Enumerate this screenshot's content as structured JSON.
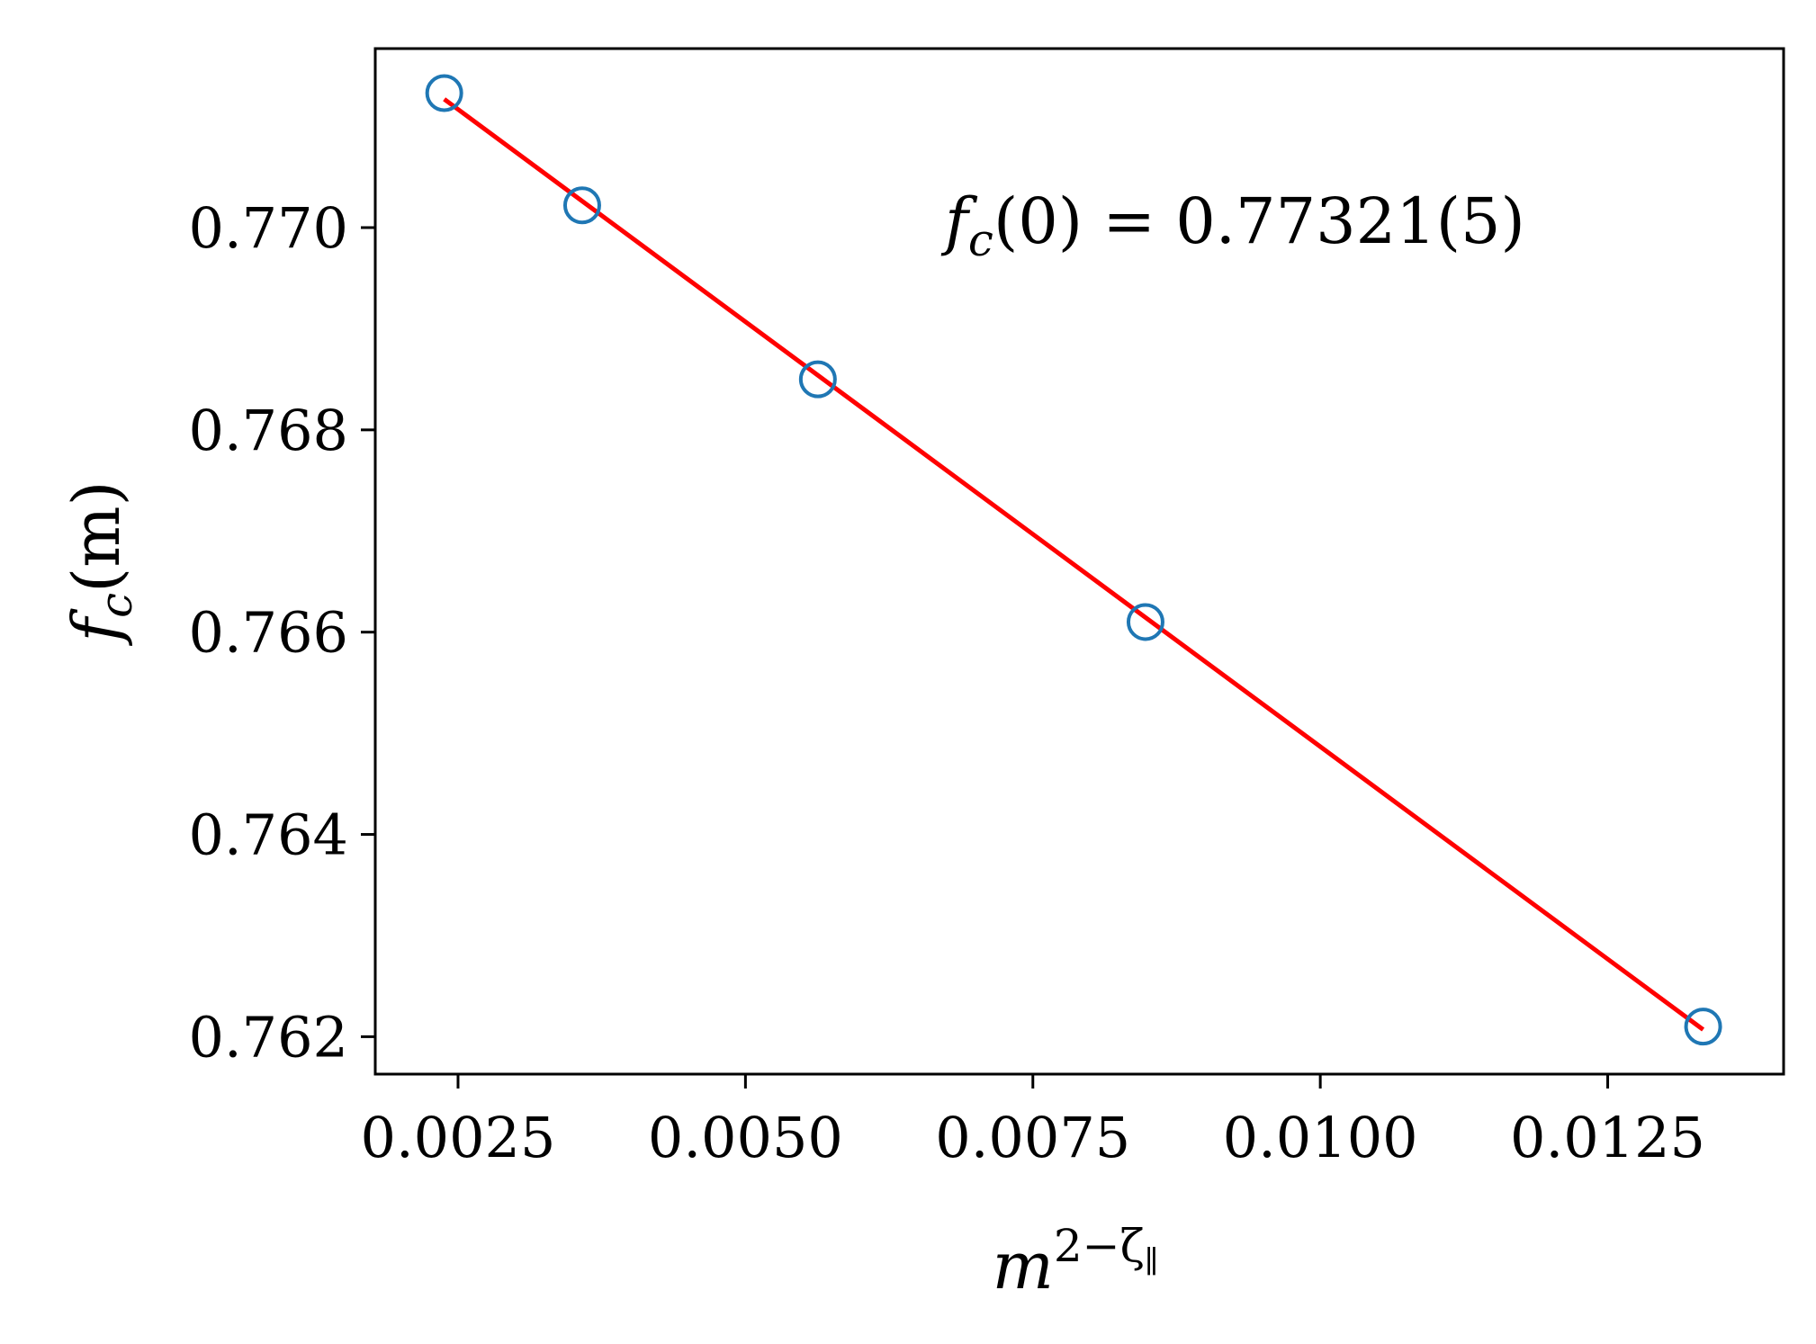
{
  "chart_data": {
    "type": "scatter",
    "title": "",
    "xlabel": "m",
    "xlabel_sup": "2−ζ",
    "xlabel_sub": "∥",
    "ylabel": "f",
    "ylabel_sub": "c",
    "ylabel_rest": "(m)",
    "xlim": [
      0.00178,
      0.01403
    ],
    "ylim": [
      0.76163,
      0.77177
    ],
    "xticks": [
      0.0025,
      0.005,
      0.0075,
      0.01,
      0.0125
    ],
    "xtick_labels": [
      "0.0025",
      "0.0050",
      "0.0075",
      "0.0100",
      "0.0125"
    ],
    "yticks": [
      0.762,
      0.764,
      0.766,
      0.768,
      0.77
    ],
    "ytick_labels": [
      "0.762",
      "0.764",
      "0.766",
      "0.768",
      "0.770"
    ],
    "grid": false,
    "series": [
      {
        "kind": "markers",
        "marker": "open-circle",
        "color": "#1f77b4",
        "x": [
          0.00238,
          0.00358,
          0.00563,
          0.00848,
          0.01333
        ],
        "y": [
          0.77133,
          0.77022,
          0.7685,
          0.7661,
          0.7621
        ]
      },
      {
        "kind": "fit-line",
        "color": "#ff0000",
        "x": [
          0.00238,
          0.01333
        ],
        "y": [
          0.77127,
          0.76207
        ]
      }
    ],
    "annotation": {
      "prefix": "f",
      "sub": "c",
      "text": "(0) = 0.77321(5)"
    }
  }
}
